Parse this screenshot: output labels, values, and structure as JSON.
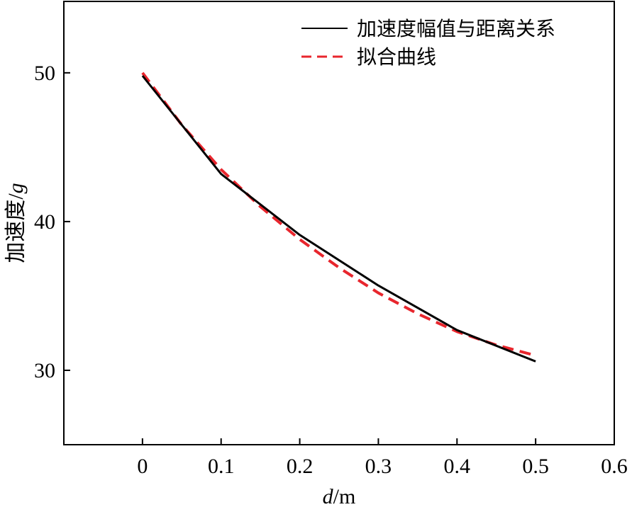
{
  "chart_data": {
    "type": "line",
    "xlabel_italic": "d",
    "xlabel_rest": "/m",
    "ylabel_main": "加速度/",
    "ylabel_italic": "g",
    "xlim": [
      -0.1,
      0.6
    ],
    "ylim": [
      25,
      54.8
    ],
    "xticks": [
      0,
      0.1,
      0.2,
      0.3,
      0.4,
      0.5,
      0.6
    ],
    "xtick_labels": [
      "0",
      "0.1",
      "0.2",
      "0.3",
      "0.4",
      "0.5",
      "0.6"
    ],
    "yticks": [
      30,
      40,
      50
    ],
    "ytick_labels": [
      "30",
      "40",
      "50"
    ],
    "grid": false,
    "legend_placement": "top-right",
    "series": [
      {
        "name": "加速度幅值与距离关系",
        "style": "solid",
        "color": "#000000",
        "x": [
          0,
          0.1,
          0.2,
          0.3,
          0.4,
          0.5
        ],
        "y": [
          49.8,
          43.2,
          39.1,
          35.7,
          32.7,
          30.6
        ]
      },
      {
        "name": "拟合曲线",
        "style": "dashed",
        "color": "#e8262d",
        "x": [
          0,
          0.05,
          0.1,
          0.15,
          0.2,
          0.25,
          0.3,
          0.35,
          0.4,
          0.45,
          0.5
        ],
        "y": [
          50.0,
          46.5,
          43.5,
          41.0,
          38.8,
          36.9,
          35.2,
          33.8,
          32.6,
          31.7,
          31.0
        ]
      }
    ]
  }
}
